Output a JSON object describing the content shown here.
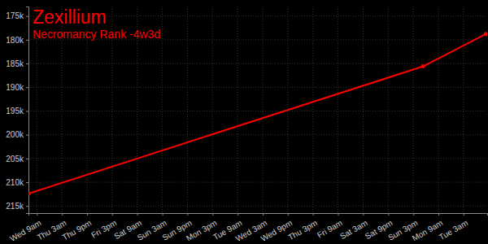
{
  "chart_data": {
    "type": "line",
    "title": "Zexillium",
    "subtitle": "Necromancy Rank -4w3d",
    "x": [
      3,
      286,
      331
    ],
    "values": [
      212400,
      185600,
      178800
    ],
    "color": "#ff0000",
    "marker": "circle",
    "grid": true,
    "xlim": [
      3,
      332
    ],
    "xticks": [
      {
        "value": 9,
        "label": "Wed 9am"
      },
      {
        "value": 27,
        "label": "Thu 3am"
      },
      {
        "value": 45,
        "label": "Thu 9pm"
      },
      {
        "value": 63,
        "label": "Fri 3pm"
      },
      {
        "value": 81,
        "label": "Sat 9am"
      },
      {
        "value": 99,
        "label": "Sun 3am"
      },
      {
        "value": 117,
        "label": "Sun 9pm"
      },
      {
        "value": 135,
        "label": "Mon 3pm"
      },
      {
        "value": 153,
        "label": "Tue 9am"
      },
      {
        "value": 171,
        "label": "Wed 3am"
      },
      {
        "value": 189,
        "label": "Wed 9pm"
      },
      {
        "value": 207,
        "label": "Thu 3pm"
      },
      {
        "value": 225,
        "label": "Fri 9am"
      },
      {
        "value": 243,
        "label": "Sat 3am"
      },
      {
        "value": 261,
        "label": "Sat 9pm"
      },
      {
        "value": 279,
        "label": "Sun 3pm"
      },
      {
        "value": 297,
        "label": "Mon 9am"
      },
      {
        "value": 315,
        "label": "Tue 3am"
      }
    ],
    "ylim": [
      216500,
      173000
    ],
    "yticks": [
      {
        "value": 175000,
        "label": "175k"
      },
      {
        "value": 180000,
        "label": "180k"
      },
      {
        "value": 185000,
        "label": "185k"
      },
      {
        "value": 190000,
        "label": "190k"
      },
      {
        "value": 195000,
        "label": "195k"
      },
      {
        "value": 200000,
        "label": "200k"
      },
      {
        "value": 205000,
        "label": "205k"
      },
      {
        "value": 210000,
        "label": "210k"
      },
      {
        "value": 215000,
        "label": "215k"
      }
    ]
  }
}
